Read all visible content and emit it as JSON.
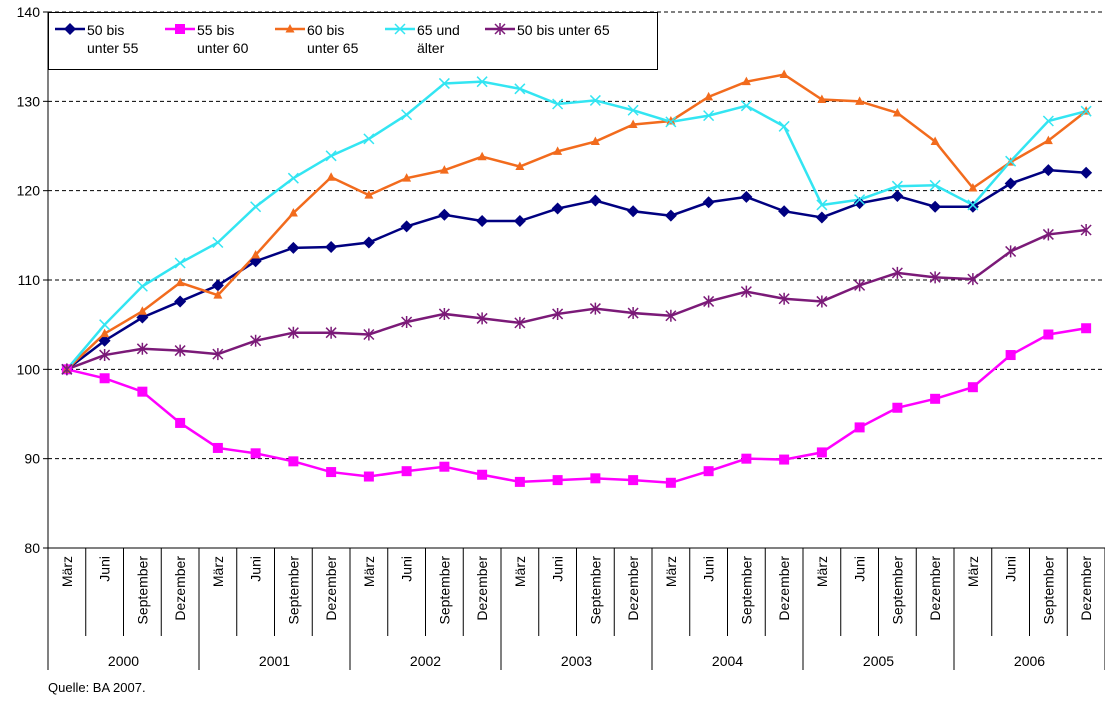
{
  "chart_data": {
    "type": "line",
    "source": "Quelle: BA 2007.",
    "categories": [
      "März",
      "Juni",
      "September",
      "Dezember",
      "März",
      "Juni",
      "September",
      "Dezember",
      "März",
      "Juni",
      "September",
      "Dezember",
      "März",
      "Juni",
      "September",
      "Dezember",
      "März",
      "Juni",
      "September",
      "Dezember",
      "März",
      "Juni",
      "September",
      "Dezember",
      "März",
      "Juni",
      "September",
      "Dezember"
    ],
    "x_groups": [
      "2000",
      "2001",
      "2002",
      "2003",
      "2004",
      "2005",
      "2006"
    ],
    "ylim": [
      80,
      140
    ],
    "yticks": [
      80,
      90,
      100,
      110,
      120,
      130,
      140
    ],
    "grid": true,
    "legend": "top-left",
    "series": [
      {
        "name": "50 bis unter 55",
        "color": "#000080",
        "marker": "diamond",
        "values": [
          100,
          103.2,
          105.8,
          107.6,
          109.4,
          112.1,
          113.6,
          113.7,
          114.2,
          116,
          117.3,
          116.6,
          116.6,
          118,
          118.9,
          117.7,
          117.2,
          118.7,
          119.3,
          117.7,
          117,
          118.6,
          119.4,
          118.2,
          118.2,
          120.8,
          122.3,
          122
        ]
      },
      {
        "name": "55 bis unter 60",
        "color": "#ff00ff",
        "marker": "square",
        "values": [
          100,
          99,
          97.5,
          94,
          91.2,
          90.6,
          89.7,
          88.5,
          88,
          88.6,
          89.1,
          88.2,
          87.4,
          87.6,
          87.8,
          87.6,
          87.3,
          88.6,
          90,
          89.9,
          90.7,
          93.5,
          95.7,
          96.7,
          98,
          101.6,
          103.9,
          104.6
        ]
      },
      {
        "name": "60 bis unter 65",
        "color": "#f26b1d",
        "marker": "triangle",
        "values": [
          100,
          104,
          106.5,
          109.7,
          108.3,
          112.8,
          117.5,
          121.5,
          119.5,
          121.4,
          122.3,
          123.8,
          122.7,
          124.4,
          125.5,
          127.4,
          127.8,
          130.5,
          132.2,
          133,
          130.2,
          130,
          128.7,
          125.5,
          120.3,
          123.2,
          125.6,
          128.9
        ]
      },
      {
        "name": "65 und älter",
        "color": "#33e5f2",
        "marker": "x",
        "values": [
          100,
          105,
          109.3,
          111.9,
          114.2,
          118.2,
          121.4,
          123.9,
          125.8,
          128.5,
          132,
          132.2,
          131.4,
          129.7,
          130.1,
          129,
          127.7,
          128.4,
          129.5,
          127.2,
          118.4,
          119,
          120.5,
          120.6,
          118.4,
          123.3,
          127.8,
          128.9
        ]
      },
      {
        "name": "50 bis unter 65",
        "color": "#7b1a78",
        "marker": "asterisk",
        "values": [
          100,
          101.6,
          102.3,
          102.1,
          101.7,
          103.2,
          104.1,
          104.1,
          103.9,
          105.3,
          106.2,
          105.7,
          105.2,
          106.2,
          106.8,
          106.3,
          106,
          107.6,
          108.7,
          107.9,
          107.6,
          109.4,
          110.8,
          110.3,
          110.1,
          113.2,
          115.1,
          115.6
        ]
      }
    ]
  }
}
